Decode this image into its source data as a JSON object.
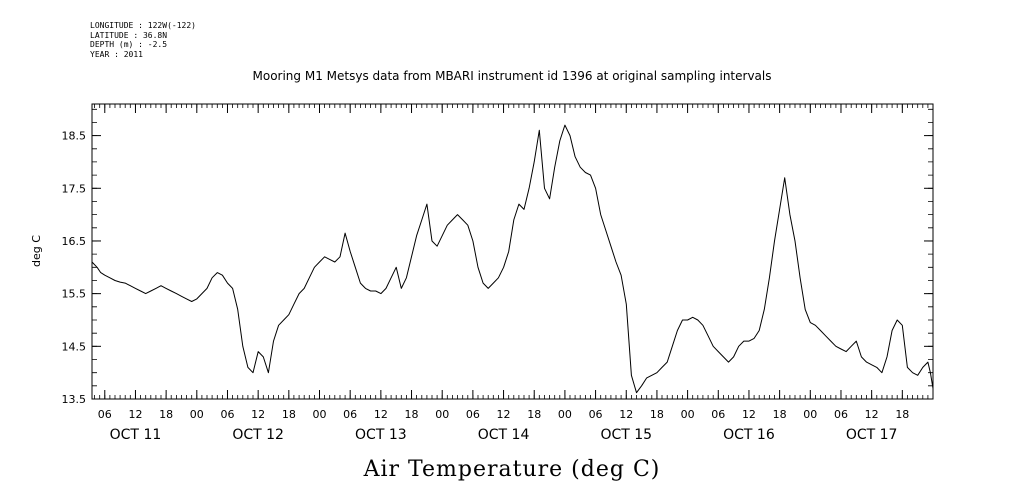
{
  "header": {
    "longitude": "LONGITUDE : 122W(-122)",
    "latitude": "LATITUDE : 36.8N",
    "depth": "DEPTH (m) : -2.5",
    "year": "YEAR : 2011"
  },
  "chart_data": {
    "type": "line",
    "title": "Mooring M1 Metsys data from MBARI instrument id 1396 at original sampling intervals",
    "xlabel": "Air Temperature (deg C)",
    "ylabel": "deg C",
    "x_unit": "hours since 2011-10-11 00:00",
    "xlim": [
      3.5,
      168
    ],
    "ylim": [
      13.5,
      19.1
    ],
    "yticks": [
      "13.5",
      "14.5",
      "15.5",
      "16.5",
      "17.5",
      "18.5"
    ],
    "xticks_hours": [
      "06",
      "12",
      "18",
      "00",
      "06",
      "12",
      "18",
      "00",
      "06",
      "12",
      "18",
      "00",
      "06",
      "12",
      "18",
      "00",
      "06",
      "12",
      "18",
      "00",
      "06",
      "12",
      "18",
      "00",
      "06",
      "12",
      "18"
    ],
    "day_labels": [
      "OCT 11",
      "OCT 12",
      "OCT 13",
      "OCT 14",
      "OCT 15",
      "OCT 16",
      "OCT 17"
    ],
    "grid": false,
    "series": [
      {
        "values": [
          [
            3.5,
            16.1
          ],
          [
            4.5,
            16.0
          ],
          [
            5.2,
            15.9
          ],
          [
            6,
            15.85
          ],
          [
            7,
            15.8
          ],
          [
            8,
            15.75
          ],
          [
            9,
            15.72
          ],
          [
            10,
            15.7
          ],
          [
            11,
            15.65
          ],
          [
            12,
            15.6
          ],
          [
            13,
            15.55
          ],
          [
            14,
            15.5
          ],
          [
            15,
            15.55
          ],
          [
            16,
            15.6
          ],
          [
            17,
            15.65
          ],
          [
            18,
            15.6
          ],
          [
            19,
            15.55
          ],
          [
            20,
            15.5
          ],
          [
            21,
            15.45
          ],
          [
            22,
            15.4
          ],
          [
            23,
            15.35
          ],
          [
            24,
            15.4
          ],
          [
            25,
            15.5
          ],
          [
            26,
            15.6
          ],
          [
            27,
            15.8
          ],
          [
            28,
            15.9
          ],
          [
            29,
            15.85
          ],
          [
            30,
            15.7
          ],
          [
            31,
            15.6
          ],
          [
            32,
            15.2
          ],
          [
            33,
            14.5
          ],
          [
            34,
            14.1
          ],
          [
            35,
            14.0
          ],
          [
            36,
            14.4
          ],
          [
            37,
            14.3
          ],
          [
            38,
            14.0
          ],
          [
            39,
            14.6
          ],
          [
            40,
            14.9
          ],
          [
            41,
            15.0
          ],
          [
            42,
            15.1
          ],
          [
            43,
            15.3
          ],
          [
            44,
            15.5
          ],
          [
            45,
            15.6
          ],
          [
            46,
            15.8
          ],
          [
            47,
            16.0
          ],
          [
            48,
            16.1
          ],
          [
            49,
            16.2
          ],
          [
            50,
            16.15
          ],
          [
            51,
            16.1
          ],
          [
            52,
            16.2
          ],
          [
            53,
            16.65
          ],
          [
            54,
            16.3
          ],
          [
            55,
            16.0
          ],
          [
            56,
            15.7
          ],
          [
            57,
            15.6
          ],
          [
            58,
            15.55
          ],
          [
            59,
            15.55
          ],
          [
            60,
            15.5
          ],
          [
            61,
            15.6
          ],
          [
            62,
            15.8
          ],
          [
            63,
            16.0
          ],
          [
            64,
            15.6
          ],
          [
            65,
            15.8
          ],
          [
            66,
            16.2
          ],
          [
            67,
            16.6
          ],
          [
            68,
            16.9
          ],
          [
            69,
            17.2
          ],
          [
            70,
            16.5
          ],
          [
            71,
            16.4
          ],
          [
            72,
            16.6
          ],
          [
            73,
            16.8
          ],
          [
            74,
            16.9
          ],
          [
            75,
            17.0
          ],
          [
            76,
            16.9
          ],
          [
            77,
            16.8
          ],
          [
            78,
            16.5
          ],
          [
            79,
            16.0
          ],
          [
            80,
            15.7
          ],
          [
            81,
            15.6
          ],
          [
            82,
            15.7
          ],
          [
            83,
            15.8
          ],
          [
            84,
            16.0
          ],
          [
            85,
            16.3
          ],
          [
            86,
            16.9
          ],
          [
            87,
            17.2
          ],
          [
            88,
            17.1
          ],
          [
            89,
            17.5
          ],
          [
            90,
            18.0
          ],
          [
            91,
            18.6
          ],
          [
            92,
            17.5
          ],
          [
            93,
            17.3
          ],
          [
            94,
            17.9
          ],
          [
            95,
            18.4
          ],
          [
            96,
            18.7
          ],
          [
            97,
            18.5
          ],
          [
            98,
            18.1
          ],
          [
            99,
            17.9
          ],
          [
            100,
            17.8
          ],
          [
            101,
            17.75
          ],
          [
            102,
            17.5
          ],
          [
            103,
            17.0
          ],
          [
            104,
            16.7
          ],
          [
            105,
            16.4
          ],
          [
            106,
            16.1
          ],
          [
            107,
            15.85
          ],
          [
            108,
            15.3
          ],
          [
            109,
            13.95
          ],
          [
            110,
            13.62
          ],
          [
            111,
            13.75
          ],
          [
            112,
            13.9
          ],
          [
            113,
            13.95
          ],
          [
            114,
            14.0
          ],
          [
            115,
            14.1
          ],
          [
            116,
            14.2
          ],
          [
            117,
            14.5
          ],
          [
            118,
            14.8
          ],
          [
            119,
            15.0
          ],
          [
            120,
            15.0
          ],
          [
            121,
            15.05
          ],
          [
            122,
            15.0
          ],
          [
            123,
            14.9
          ],
          [
            124,
            14.7
          ],
          [
            125,
            14.5
          ],
          [
            126,
            14.4
          ],
          [
            127,
            14.3
          ],
          [
            128,
            14.2
          ],
          [
            129,
            14.3
          ],
          [
            130,
            14.5
          ],
          [
            131,
            14.6
          ],
          [
            132,
            14.6
          ],
          [
            133,
            14.65
          ],
          [
            134,
            14.8
          ],
          [
            135,
            15.2
          ],
          [
            136,
            15.8
          ],
          [
            137,
            16.5
          ],
          [
            138,
            17.1
          ],
          [
            139,
            17.7
          ],
          [
            140,
            17.0
          ],
          [
            141,
            16.5
          ],
          [
            142,
            15.8
          ],
          [
            143,
            15.2
          ],
          [
            144,
            14.95
          ],
          [
            145,
            14.9
          ],
          [
            146,
            14.8
          ],
          [
            147,
            14.7
          ],
          [
            148,
            14.6
          ],
          [
            149,
            14.5
          ],
          [
            150,
            14.45
          ],
          [
            151,
            14.4
          ],
          [
            152,
            14.5
          ],
          [
            153,
            14.6
          ],
          [
            154,
            14.3
          ],
          [
            155,
            14.2
          ],
          [
            156,
            14.15
          ],
          [
            157,
            14.1
          ],
          [
            158,
            14.0
          ],
          [
            159,
            14.3
          ],
          [
            160,
            14.8
          ],
          [
            161,
            15.0
          ],
          [
            162,
            14.9
          ],
          [
            163,
            14.1
          ],
          [
            164,
            14.0
          ],
          [
            165,
            13.95
          ],
          [
            166,
            14.1
          ],
          [
            167,
            14.2
          ],
          [
            167.5,
            14.0
          ],
          [
            168,
            13.7
          ]
        ],
        "color": "#000000"
      }
    ]
  }
}
